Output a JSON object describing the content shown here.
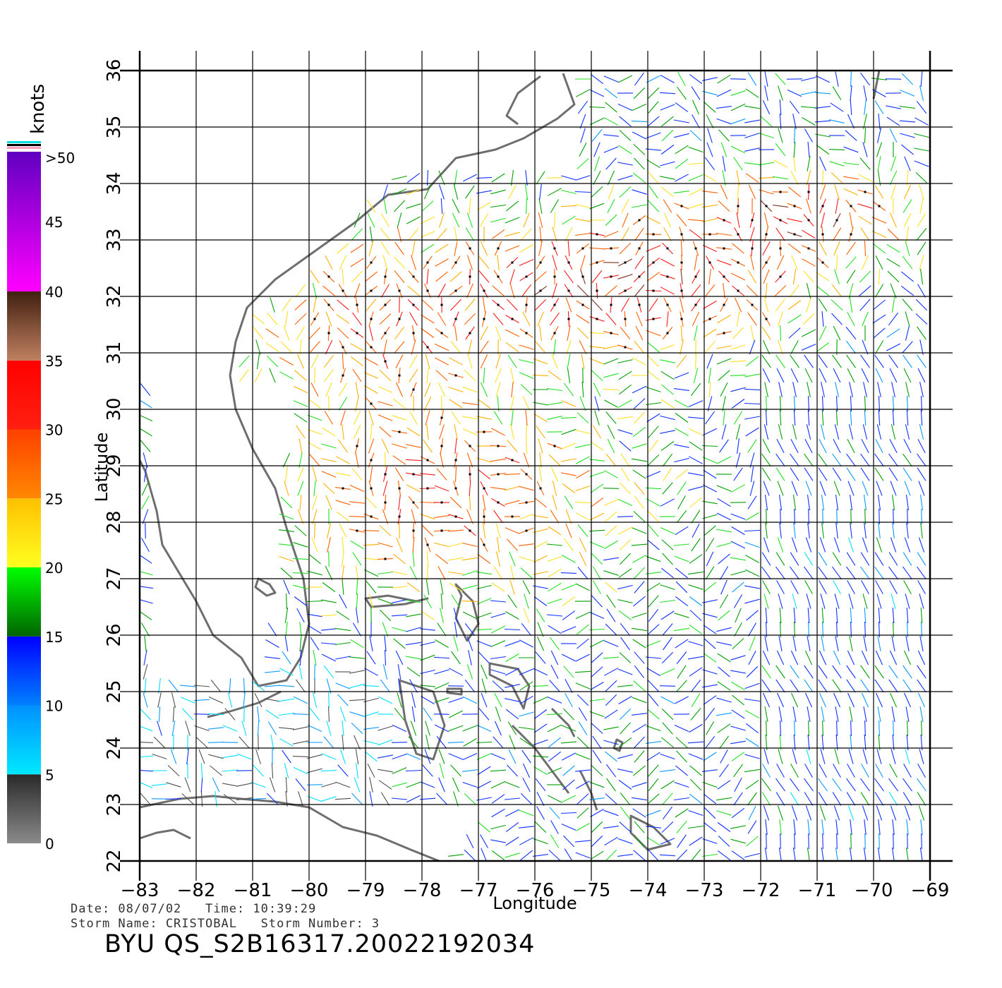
{
  "colorbar": {
    "unit_label": "knots",
    "tick_labels": [
      "0",
      "5",
      "10",
      "15",
      "20",
      "25",
      "30",
      "35",
      "40",
      "45",
      ">50"
    ],
    "bands": [
      {
        "from": 0,
        "to": 5,
        "colors": [
          "#8a8a8a",
          "#2a2a2a"
        ]
      },
      {
        "from": 5,
        "to": 10,
        "colors": [
          "#00e8ff",
          "#0090ff"
        ]
      },
      {
        "from": 10,
        "to": 15,
        "colors": [
          "#0080ff",
          "#0000ff"
        ]
      },
      {
        "from": 15,
        "to": 20,
        "colors": [
          "#006400",
          "#00ff00"
        ]
      },
      {
        "from": 20,
        "to": 25,
        "colors": [
          "#ffff20",
          "#ffc000"
        ]
      },
      {
        "from": 25,
        "to": 30,
        "colors": [
          "#ff8800",
          "#ff4000"
        ]
      },
      {
        "from": 30,
        "to": 35,
        "colors": [
          "#ff2010",
          "#ff0000"
        ]
      },
      {
        "from": 35,
        "to": 40,
        "colors": [
          "#c08060",
          "#402010"
        ]
      },
      {
        "from": 40,
        "to": 50,
        "colors": [
          "#ff00ff",
          "#6000c0"
        ]
      }
    ],
    "top_stripes": [
      "#00e0e0",
      "#000000",
      "#ff9fc0"
    ]
  },
  "axes": {
    "xlabel": "Longitude",
    "ylabel": "Latitude",
    "x_ticks": [
      -83,
      -82,
      -81,
      -80,
      -79,
      -78,
      -77,
      -76,
      -75,
      -74,
      -73,
      -72,
      -71,
      -70,
      -69
    ],
    "y_ticks": [
      22,
      23,
      24,
      25,
      26,
      27,
      28,
      29,
      30,
      31,
      32,
      33,
      34,
      35,
      36
    ],
    "x_tick_labels": [
      "−83",
      "−82",
      "−81",
      "−80",
      "−79",
      "−78",
      "−77",
      "−76",
      "−75",
      "−74",
      "−73",
      "−72",
      "−71",
      "−70",
      "−69"
    ],
    "y_tick_labels": [
      "22",
      "23",
      "24",
      "25",
      "26",
      "27",
      "28",
      "29",
      "30",
      "31",
      "32",
      "33",
      "34",
      "35",
      "36"
    ]
  },
  "colors": {
    "coastline": "#6e6e6e",
    "grid": "#000000",
    "rain_flag": "#000000"
  },
  "footer": {
    "date_line": "Date: 08/07/02   Time: 10:39:29",
    "storm_line": "Storm Name: CRISTOBAL   Storm Number: 3",
    "title": "BYU QS_S2B16317.20022192034"
  }
}
